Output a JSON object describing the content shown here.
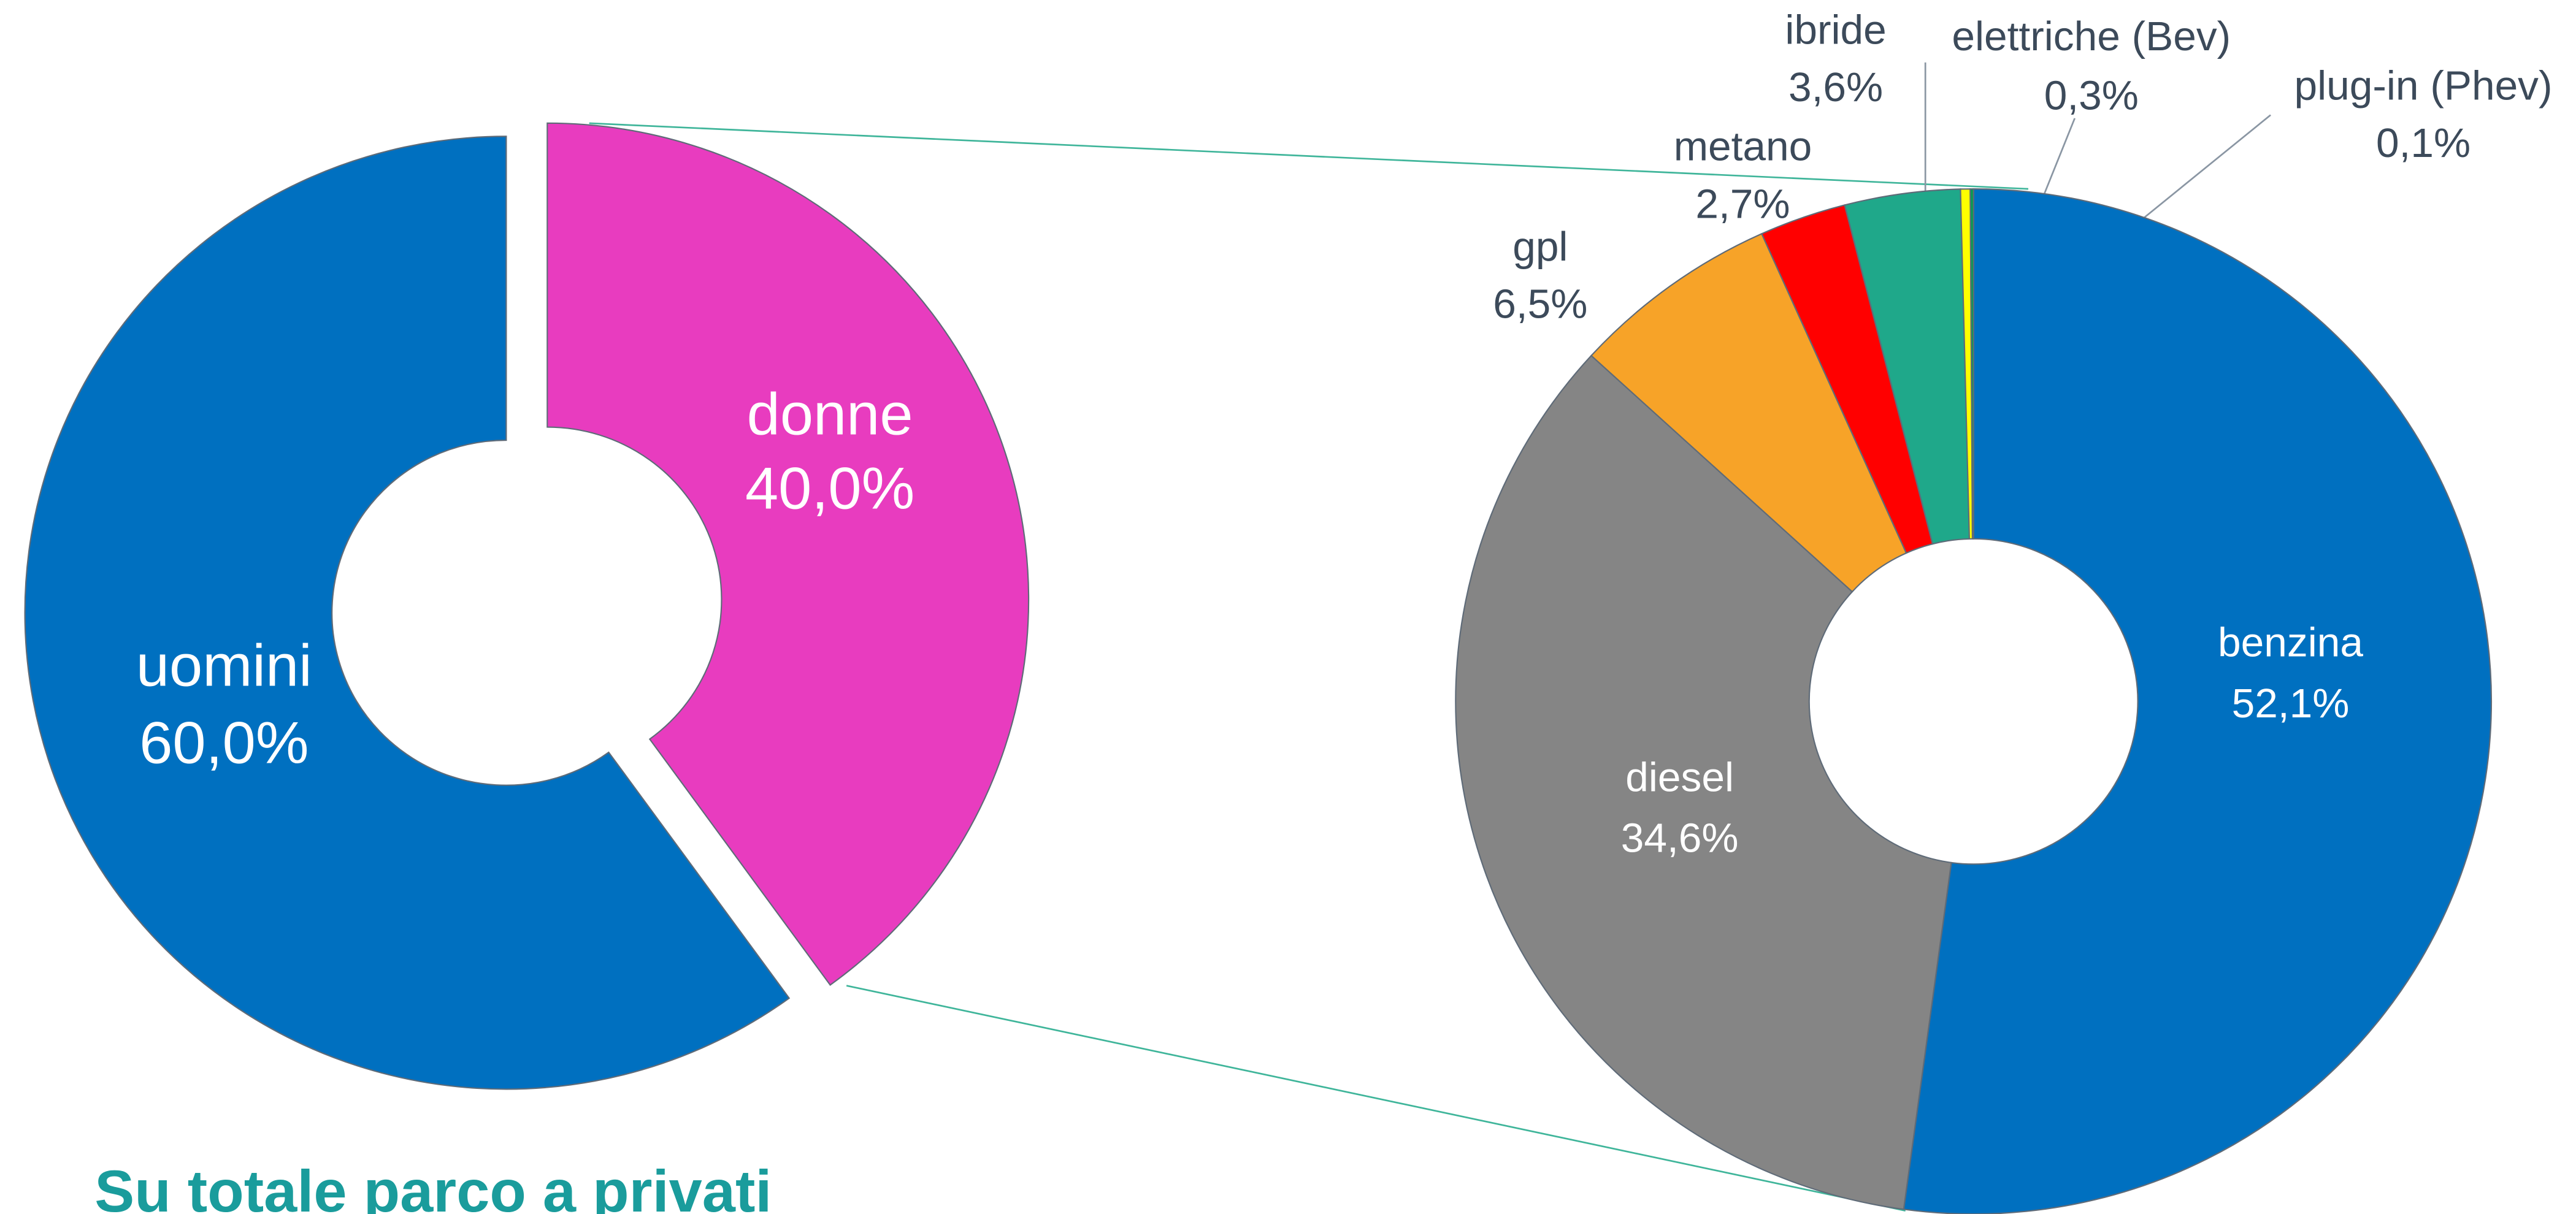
{
  "chart_data": [
    {
      "type": "donut",
      "title": "Su totale parco a privati",
      "categories": [
        "donne",
        "uomini"
      ],
      "values": [
        40.0,
        60.0
      ],
      "value_labels": [
        "40,0%",
        "60,0%"
      ],
      "colors": [
        "#e83cbf",
        "#0070c0"
      ],
      "exploded": "donne"
    },
    {
      "type": "donut",
      "categories": [
        "benzina",
        "diesel",
        "gpl",
        "metano",
        "ibride",
        "elettriche (Bev)",
        "plug-in (Phev)"
      ],
      "values": [
        52.1,
        34.6,
        6.5,
        2.7,
        3.6,
        0.3,
        0.1
      ],
      "value_labels": [
        "52,1%",
        "34,6%",
        "6,5%",
        "2,7%",
        "3,6%",
        "0,3%",
        "0,1%"
      ],
      "colors": [
        "#0070c0",
        "#858585",
        "#f7a328",
        "#ff0000",
        "#1fa88a",
        "#ffff00",
        "#00a050"
      ]
    }
  ]
}
